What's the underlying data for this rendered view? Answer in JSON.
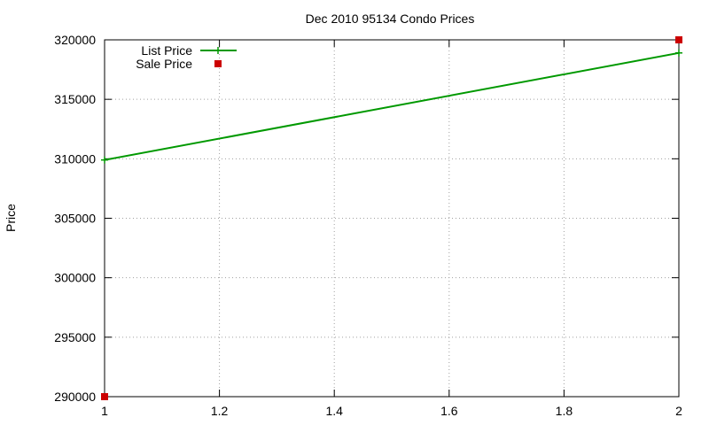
{
  "chart_data": {
    "type": "line",
    "title": "Dec 2010 95134 Condo Prices",
    "xlabel": "",
    "ylabel": "Price",
    "xlim": [
      1,
      2
    ],
    "ylim": [
      290000,
      320000
    ],
    "x_ticks": [
      1,
      1.2,
      1.4,
      1.6,
      1.8,
      2
    ],
    "x_tick_labels": [
      "1",
      "1.2",
      "1.4",
      "1.6",
      "1.8",
      "2"
    ],
    "y_ticks": [
      290000,
      295000,
      300000,
      305000,
      310000,
      315000,
      320000
    ],
    "y_tick_labels": [
      "290000",
      "295000",
      "300000",
      "305000",
      "310000",
      "315000",
      "320000"
    ],
    "grid": true,
    "legend_position": "top-left",
    "series": [
      {
        "name": "List Price",
        "style": "linespoints",
        "color": "#009900",
        "x": [
          1,
          2
        ],
        "y": [
          309900,
          318900
        ]
      },
      {
        "name": "Sale Price",
        "style": "points",
        "marker": "square",
        "color": "#cc0000",
        "x": [
          1,
          2
        ],
        "y": [
          290000,
          320000
        ]
      }
    ]
  }
}
